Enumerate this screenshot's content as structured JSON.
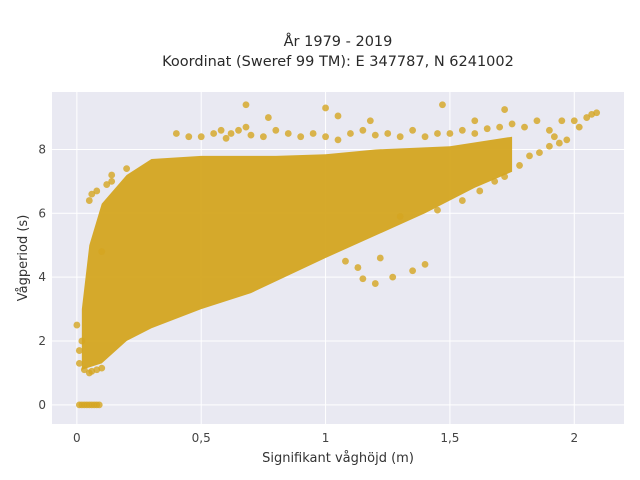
{
  "chart_data": {
    "type": "scatter",
    "title_lines": [
      "År 1979 - 2019",
      "Koordinat (Sweref 99 TM): E 347787, N 6241002"
    ],
    "xlabel": "Signifikant våghöjd (m)",
    "ylabel": "Vågperiod (s)",
    "xlim": [
      -0.1,
      2.2
    ],
    "ylim": [
      -0.6,
      9.8
    ],
    "x_ticks": [
      0,
      0.5,
      1,
      1.5,
      2
    ],
    "x_tick_labels": [
      "0",
      "0,5",
      "1",
      "1,5",
      "2"
    ],
    "y_ticks": [
      0,
      2,
      4,
      6,
      8
    ],
    "y_tick_labels": [
      "0",
      "2",
      "4",
      "6",
      "8"
    ],
    "grid": true,
    "legend": "none",
    "marker_color": "#D4A520",
    "background_color": "#E9E9F2",
    "dense_cloud": {
      "lower_edge": [
        [
          0.02,
          1.1
        ],
        [
          0.1,
          1.3
        ],
        [
          0.2,
          2.0
        ],
        [
          0.3,
          2.4
        ],
        [
          0.5,
          3.0
        ],
        [
          0.7,
          3.5
        ],
        [
          1.0,
          4.6
        ],
        [
          1.2,
          5.3
        ],
        [
          1.4,
          6.0
        ],
        [
          1.6,
          6.8
        ],
        [
          1.75,
          7.3
        ]
      ],
      "upper_edge": [
        [
          0.02,
          3.0
        ],
        [
          0.05,
          5.0
        ],
        [
          0.1,
          6.3
        ],
        [
          0.2,
          7.2
        ],
        [
          0.3,
          7.7
        ],
        [
          0.5,
          7.8
        ],
        [
          0.8,
          7.8
        ],
        [
          1.0,
          7.85
        ],
        [
          1.2,
          8.0
        ],
        [
          1.5,
          8.1
        ],
        [
          1.75,
          8.4
        ]
      ]
    },
    "points": [
      [
        0.01,
        0.0
      ],
      [
        0.02,
        0.0
      ],
      [
        0.03,
        0.0
      ],
      [
        0.04,
        0.0
      ],
      [
        0.05,
        0.0
      ],
      [
        0.06,
        0.0
      ],
      [
        0.07,
        0.0
      ],
      [
        0.08,
        0.0
      ],
      [
        0.09,
        0.0
      ],
      [
        0.0,
        2.5
      ],
      [
        0.01,
        1.7
      ],
      [
        0.01,
        1.3
      ],
      [
        0.02,
        2.0
      ],
      [
        0.03,
        1.1
      ],
      [
        0.05,
        1.0
      ],
      [
        0.06,
        1.05
      ],
      [
        0.08,
        1.1
      ],
      [
        0.1,
        1.15
      ],
      [
        0.05,
        6.4
      ],
      [
        0.06,
        6.6
      ],
      [
        0.08,
        6.7
      ],
      [
        0.12,
        6.9
      ],
      [
        0.14,
        7.0
      ],
      [
        0.14,
        7.2
      ],
      [
        0.2,
        7.4
      ],
      [
        0.1,
        4.8
      ],
      [
        0.4,
        8.5
      ],
      [
        0.45,
        8.4
      ],
      [
        0.5,
        8.4
      ],
      [
        0.55,
        8.5
      ],
      [
        0.58,
        8.6
      ],
      [
        0.6,
        8.35
      ],
      [
        0.62,
        8.5
      ],
      [
        0.65,
        8.6
      ],
      [
        0.68,
        8.7
      ],
      [
        0.7,
        8.45
      ],
      [
        0.75,
        8.4
      ],
      [
        0.8,
        8.6
      ],
      [
        0.85,
        8.5
      ],
      [
        0.9,
        8.4
      ],
      [
        0.95,
        8.5
      ],
      [
        1.0,
        8.4
      ],
      [
        1.05,
        8.3
      ],
      [
        1.1,
        8.5
      ],
      [
        1.15,
        8.6
      ],
      [
        1.2,
        8.45
      ],
      [
        1.25,
        8.5
      ],
      [
        1.3,
        8.4
      ],
      [
        1.35,
        8.6
      ],
      [
        1.4,
        8.4
      ],
      [
        1.45,
        8.5
      ],
      [
        1.5,
        8.5
      ],
      [
        1.55,
        8.6
      ],
      [
        1.6,
        8.5
      ],
      [
        1.65,
        8.65
      ],
      [
        1.7,
        8.7
      ],
      [
        1.75,
        8.8
      ],
      [
        1.8,
        8.7
      ],
      [
        1.85,
        8.9
      ],
      [
        1.9,
        8.6
      ],
      [
        1.95,
        8.9
      ],
      [
        2.0,
        8.9
      ],
      [
        2.02,
        8.7
      ],
      [
        2.05,
        9.0
      ],
      [
        2.07,
        9.1
      ],
      [
        2.09,
        9.15
      ],
      [
        1.97,
        8.3
      ],
      [
        1.92,
        8.4
      ],
      [
        0.68,
        9.4
      ],
      [
        1.0,
        9.3
      ],
      [
        1.47,
        9.4
      ],
      [
        1.05,
        9.05
      ],
      [
        1.18,
        8.9
      ],
      [
        1.6,
        8.9
      ],
      [
        1.72,
        9.25
      ],
      [
        0.77,
        9.0
      ],
      [
        1.2,
        3.8
      ],
      [
        1.27,
        4.0
      ],
      [
        1.35,
        4.2
      ],
      [
        1.13,
        4.3
      ],
      [
        1.4,
        4.4
      ],
      [
        1.22,
        4.6
      ],
      [
        1.08,
        4.5
      ],
      [
        1.15,
        3.95
      ],
      [
        1.3,
        5.9
      ],
      [
        1.45,
        6.1
      ],
      [
        1.55,
        6.4
      ],
      [
        1.62,
        6.7
      ],
      [
        1.68,
        7.0
      ],
      [
        1.72,
        7.15
      ],
      [
        1.78,
        7.5
      ],
      [
        1.82,
        7.8
      ],
      [
        1.86,
        7.9
      ],
      [
        1.9,
        8.1
      ],
      [
        1.94,
        8.2
      ]
    ]
  }
}
